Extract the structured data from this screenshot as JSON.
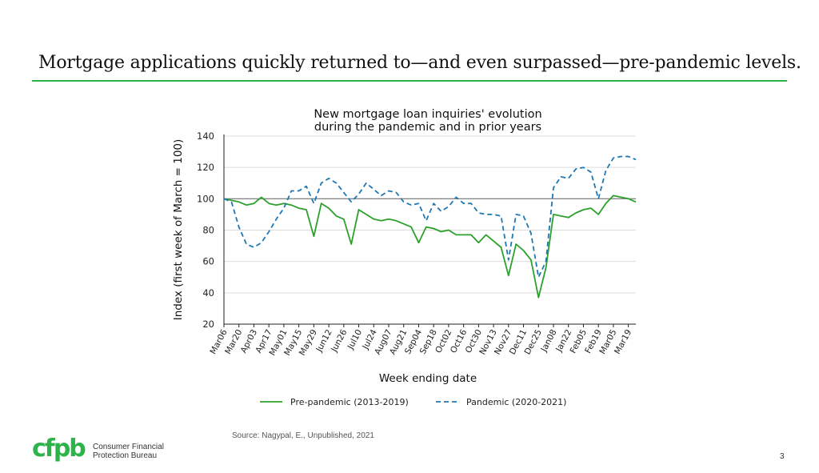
{
  "slide": {
    "title": "Mortgage applications quickly returned to—and even surpassed—pre-pandemic levels.",
    "source": "Source: Nagypal, E., Unpublished, 2021",
    "page_number": "3",
    "accent_color": "#2cb34a"
  },
  "logo": {
    "mark": "cfpb",
    "line1": "Consumer Financial",
    "line2": "Protection Bureau",
    "color": "#2cb34a"
  },
  "chart_data": {
    "type": "line",
    "title_lines": [
      "New mortgage loan inquiries' evolution",
      "during the pandemic and in prior years"
    ],
    "xlabel": "Week ending date",
    "ylabel": "Index (first week of March = 100)",
    "ylim": [
      20,
      140
    ],
    "yticks": [
      20,
      40,
      60,
      80,
      100,
      120,
      140
    ],
    "reference_line": 100,
    "grid": true,
    "n_weeks": 56,
    "x_tick_labels": [
      "Mar06",
      "Mar20",
      "Apr03",
      "Apr17",
      "May01",
      "May15",
      "May29",
      "Jun12",
      "Jun26",
      "Jul10",
      "Jul24",
      "Aug07",
      "Aug21",
      "Sep04",
      "Sep18",
      "Oct02",
      "Oct16",
      "Oct30",
      "Nov13",
      "Nov27",
      "Dec11",
      "Dec25",
      "Jan08",
      "Jan22",
      "Feb05",
      "Feb19",
      "Mar05",
      "Mar19"
    ],
    "legend_position": "bottom",
    "series": [
      {
        "name": "Pre-pandemic (2013-2019)",
        "color": "#2ca02c",
        "dash": "solid",
        "values": [
          100,
          99,
          98,
          96,
          97,
          101,
          97,
          96,
          97,
          96,
          94,
          93,
          76,
          97,
          94,
          89,
          87,
          71,
          93,
          90,
          87,
          86,
          87,
          86,
          84,
          82,
          72,
          82,
          81,
          79,
          80,
          77,
          77,
          77,
          72,
          77,
          73,
          69,
          51,
          71,
          67,
          61,
          37,
          56,
          90,
          89,
          88,
          91,
          93,
          94,
          90,
          97,
          102,
          101,
          100,
          98
        ]
      },
      {
        "name": "Pandemic (2020-2021)",
        "color": "#1f77b4",
        "dash": "dashed",
        "values": [
          100,
          98,
          82,
          71,
          69,
          72,
          79,
          87,
          94,
          105,
          105,
          108,
          97,
          110,
          113,
          110,
          104,
          98,
          103,
          110,
          106,
          102,
          105,
          104,
          98,
          96,
          97,
          86,
          97,
          92,
          95,
          101,
          97,
          97,
          91,
          90,
          90,
          89,
          61,
          90,
          89,
          78,
          50,
          60,
          107,
          114,
          113,
          119,
          120,
          117,
          100,
          118,
          126,
          127,
          127,
          125
        ]
      }
    ]
  }
}
